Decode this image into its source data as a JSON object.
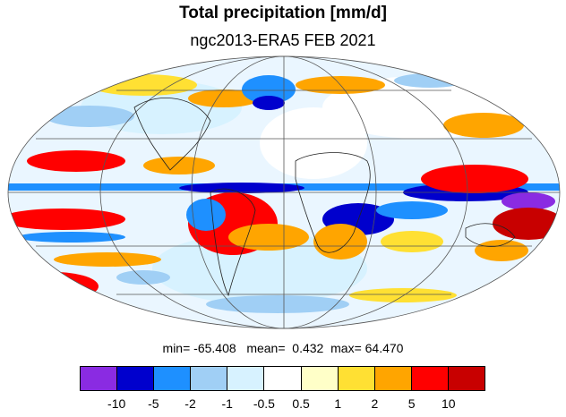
{
  "title": "Total precipitation [mm/d]",
  "subtitle": "ngc2013-ERA5 FEB 2021",
  "stats": {
    "min_label": "min=",
    "min_value": "-65.408",
    "mean_label": "mean=",
    "mean_value": "0.432",
    "max_label": "max=",
    "max_value": "64.470"
  },
  "colorbar": {
    "colors": [
      "#8a2be2",
      "#0000cd",
      "#1e90ff",
      "#a0cff5",
      "#d7f2ff",
      "#ffffff",
      "#ffffc8",
      "#ffe033",
      "#ffa500",
      "#ff0000",
      "#c80000"
    ],
    "tick_labels": [
      "-10",
      "-5",
      "-2",
      "-1",
      "-0.5",
      "0.5",
      "1",
      "2",
      "5",
      "10"
    ]
  }
}
